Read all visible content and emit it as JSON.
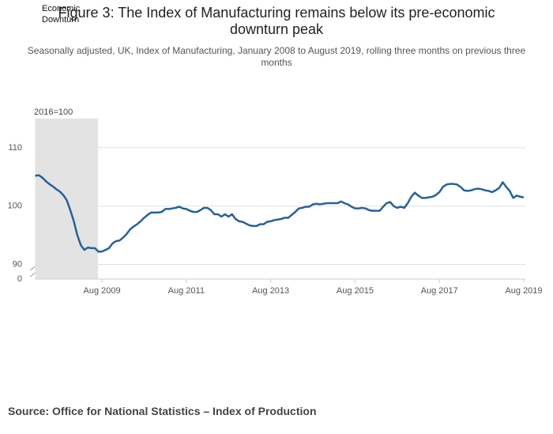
{
  "chart_data": {
    "type": "line",
    "title": "Figure 3: The Index of Manufacturing remains below its pre-economic downturn peak",
    "subtitle": "Seasonally adjusted, UK, Index of Manufacturing, January 2008 to August 2019, rolling three months on previous three months",
    "y_unit_label": "2016=100",
    "source": "Source: Office for National Statistics – Index of Production",
    "shaded_period": {
      "label": "Economic Downturn",
      "x": [
        "Jan 2008",
        "Jun 2009"
      ]
    },
    "color": "#27609a",
    "x": [
      "Jan 2008",
      "Feb 2008",
      "Mar 2008",
      "Apr 2008",
      "May 2008",
      "Jun 2008",
      "Jul 2008",
      "Aug 2008",
      "Sep 2008",
      "Oct 2008",
      "Nov 2008",
      "Dec 2008",
      "Jan 2009",
      "Feb 2009",
      "Mar 2009",
      "Apr 2009",
      "May 2009",
      "Jun 2009",
      "Jul 2009",
      "Aug 2009",
      "Sep 2009",
      "Oct 2009",
      "Nov 2009",
      "Dec 2009",
      "Jan 2010",
      "Feb 2010",
      "Mar 2010",
      "Apr 2010",
      "May 2010",
      "Jun 2010",
      "Jul 2010",
      "Aug 2010",
      "Sep 2010",
      "Oct 2010",
      "Nov 2010",
      "Dec 2010",
      "Jan 2011",
      "Feb 2011",
      "Mar 2011",
      "Apr 2011",
      "May 2011",
      "Jun 2011",
      "Jul 2011",
      "Aug 2011",
      "Sep 2011",
      "Oct 2011",
      "Nov 2011",
      "Dec 2011",
      "Jan 2012",
      "Feb 2012",
      "Mar 2012",
      "Apr 2012",
      "May 2012",
      "Jun 2012",
      "Jul 2012",
      "Aug 2012",
      "Sep 2012",
      "Oct 2012",
      "Nov 2012",
      "Dec 2012",
      "Jan 2013",
      "Feb 2013",
      "Mar 2013",
      "Apr 2013",
      "May 2013",
      "Jun 2013",
      "Jul 2013",
      "Aug 2013",
      "Sep 2013",
      "Oct 2013",
      "Nov 2013",
      "Dec 2013",
      "Jan 2014",
      "Feb 2014",
      "Mar 2014",
      "Apr 2014",
      "May 2014",
      "Jun 2014",
      "Jul 2014",
      "Aug 2014",
      "Sep 2014",
      "Oct 2014",
      "Nov 2014",
      "Dec 2014",
      "Jan 2015",
      "Feb 2015",
      "Mar 2015",
      "Apr 2015",
      "May 2015",
      "Jun 2015",
      "Jul 2015",
      "Aug 2015",
      "Sep 2015",
      "Oct 2015",
      "Nov 2015",
      "Dec 2015",
      "Jan 2016",
      "Feb 2016",
      "Mar 2016",
      "Apr 2016",
      "May 2016",
      "Jun 2016",
      "Jul 2016",
      "Aug 2016",
      "Sep 2016",
      "Oct 2016",
      "Nov 2016",
      "Dec 2016",
      "Jan 2017",
      "Feb 2017",
      "Mar 2017",
      "Apr 2017",
      "May 2017",
      "Jun 2017",
      "Jul 2017",
      "Aug 2017",
      "Sep 2017",
      "Oct 2017",
      "Nov 2017",
      "Dec 2017",
      "Jan 2018",
      "Feb 2018",
      "Mar 2018",
      "Apr 2018",
      "May 2018",
      "Jun 2018",
      "Jul 2018",
      "Aug 2018",
      "Sep 2018",
      "Oct 2018",
      "Nov 2018",
      "Dec 2018",
      "Jan 2019",
      "Feb 2019",
      "Mar 2019",
      "Apr 2019",
      "May 2019",
      "Jun 2019",
      "Jul 2019",
      "Aug 2019"
    ],
    "values": [
      105.2,
      105.3,
      104.9,
      104.3,
      103.8,
      103.4,
      102.9,
      102.5,
      101.9,
      101,
      99.3,
      97.4,
      95,
      93.3,
      92.5,
      92.9,
      92.8,
      92.8,
      92.2,
      92.2,
      92.5,
      92.8,
      93.6,
      94,
      94.1,
      94.6,
      95.2,
      96,
      96.5,
      96.9,
      97.4,
      98,
      98.5,
      98.9,
      98.9,
      98.9,
      99,
      99.5,
      99.5,
      99.6,
      99.7,
      99.9,
      99.6,
      99.5,
      99.2,
      99,
      99,
      99.3,
      99.7,
      99.7,
      99.3,
      98.6,
      98.6,
      98.2,
      98.6,
      98.2,
      98.6,
      97.8,
      97.4,
      97.3,
      97,
      96.7,
      96.6,
      96.6,
      96.9,
      96.9,
      97.3,
      97.4,
      97.6,
      97.7,
      97.8,
      98,
      98,
      98.5,
      99,
      99.6,
      99.7,
      99.9,
      99.9,
      100.3,
      100.4,
      100.3,
      100.4,
      100.5,
      100.5,
      100.5,
      100.5,
      100.8,
      100.5,
      100.3,
      99.9,
      99.6,
      99.6,
      99.7,
      99.6,
      99.3,
      99.2,
      99.2,
      99.2,
      99.9,
      100.5,
      100.7,
      100,
      99.7,
      99.9,
      99.7,
      100.5,
      101.6,
      102.3,
      101.8,
      101.4,
      101.4,
      101.5,
      101.6,
      101.9,
      102.4,
      103.3,
      103.7,
      103.8,
      103.8,
      103.7,
      103.3,
      102.7,
      102.6,
      102.7,
      102.9,
      103,
      102.9,
      102.7,
      102.6,
      102.4,
      102.7,
      103.1,
      104.1,
      103.3,
      102.6,
      101.4,
      101.8,
      101.6,
      101.5
    ],
    "xticks": [
      "Aug 2009",
      "Aug 2011",
      "Aug 2013",
      "Aug 2015",
      "Aug 2017",
      "Aug 2019"
    ],
    "ylim": [
      87.5,
      115
    ],
    "yticks": [
      0,
      90,
      100,
      110
    ],
    "axis_break": [
      0,
      90
    ],
    "grid": true
  }
}
